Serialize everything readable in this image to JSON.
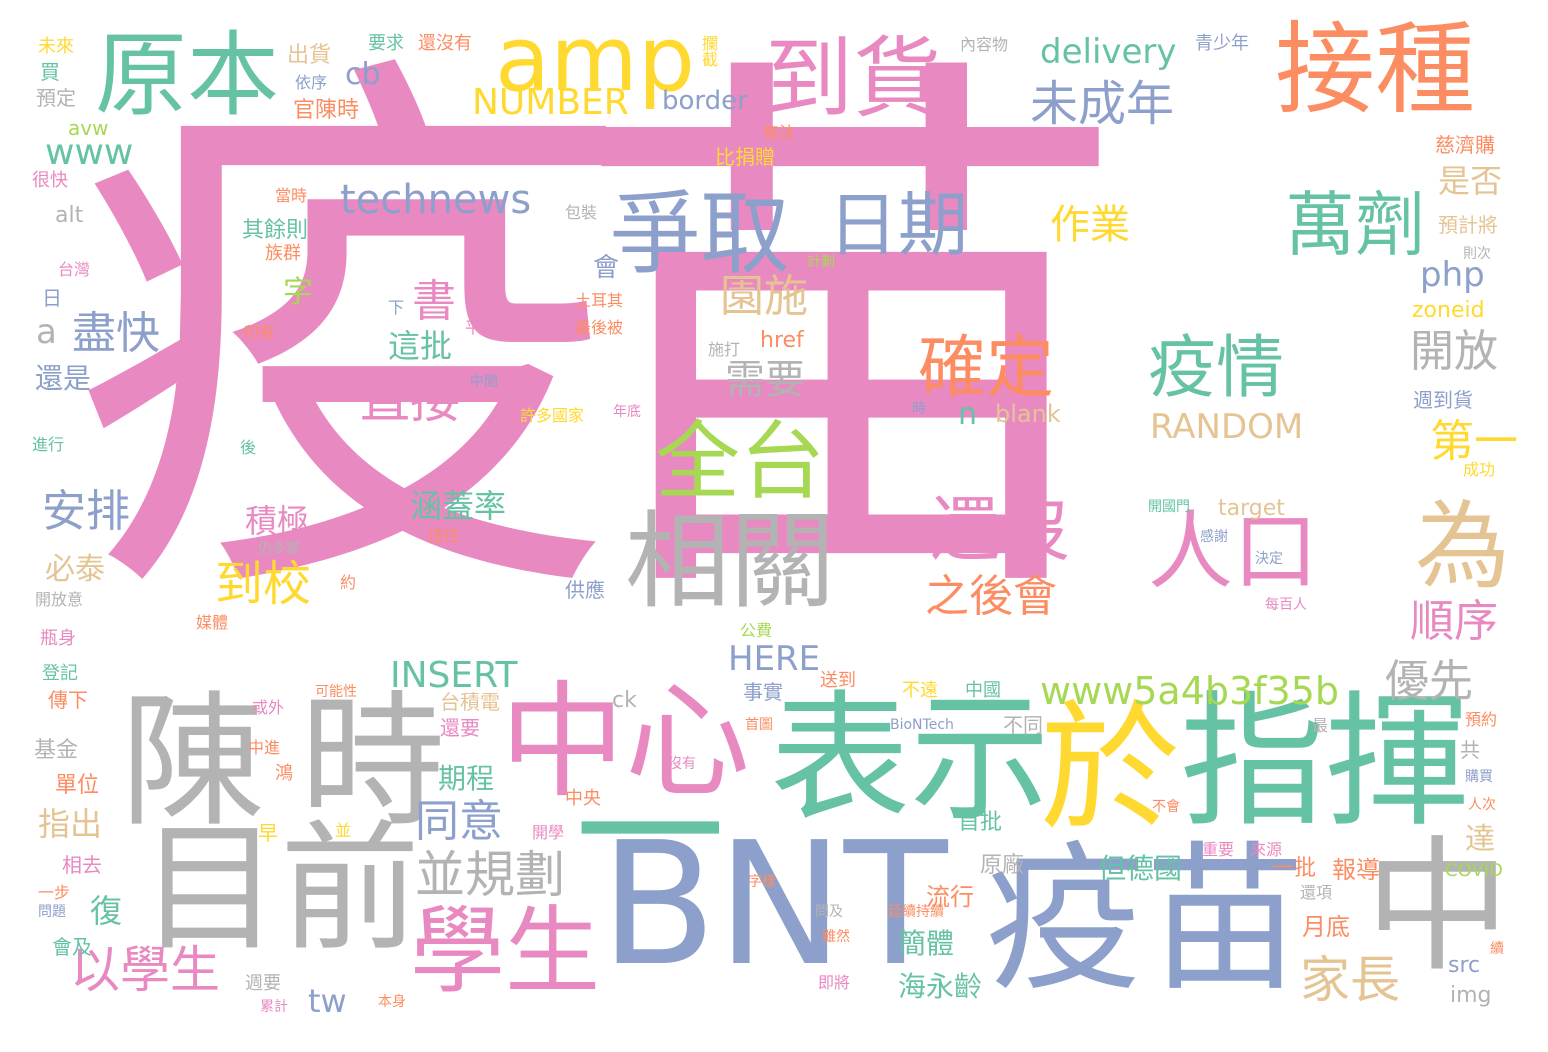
{
  "palette": {
    "pink": "#e889c2",
    "gray": "#b3b3b3",
    "green": "#66c2a5",
    "orange": "#fc8d62",
    "blue": "#8da0cb",
    "lime": "#a6d854",
    "yellow": "#ffd92f",
    "tan": "#e5c494"
  },
  "words": [
    {
      "text": "疫苗",
      "color": "pink"
    },
    {
      "text": "BNT",
      "color": "blue"
    },
    {
      "text": "疫苗",
      "color": "blue"
    },
    {
      "text": "指揮",
      "color": "green"
    },
    {
      "text": "表示",
      "color": "green"
    },
    {
      "text": "目前",
      "color": "gray"
    },
    {
      "text": "陳",
      "color": "gray"
    },
    {
      "text": "時",
      "color": "gray"
    },
    {
      "text": "於",
      "color": "yellow"
    },
    {
      "text": "中心",
      "color": "pink"
    },
    {
      "text": "一",
      "color": "green"
    },
    {
      "text": "中",
      "color": "gray"
    },
    {
      "text": "學生",
      "color": "pink"
    },
    {
      "text": "相關",
      "color": "gray"
    },
    {
      "text": "接種",
      "color": "orange"
    },
    {
      "text": "原本",
      "color": "green"
    },
    {
      "text": "amp",
      "color": "yellow"
    },
    {
      "text": "到貨",
      "color": "pink"
    },
    {
      "text": "爭取",
      "color": "blue"
    },
    {
      "text": "全台",
      "color": "lime"
    },
    {
      "text": "為",
      "color": "tan"
    },
    {
      "text": "萬劑",
      "color": "green"
    },
    {
      "text": "日期",
      "color": "blue"
    },
    {
      "text": "確定",
      "color": "orange"
    },
    {
      "text": "疫情",
      "color": "green"
    },
    {
      "text": "還沒",
      "color": "pink"
    },
    {
      "text": "人口",
      "color": "pink"
    },
    {
      "text": "並規劃",
      "color": "gray"
    },
    {
      "text": "以學生",
      "color": "pink"
    },
    {
      "text": "家長",
      "color": "tan"
    },
    {
      "text": "www5a4b3f35b",
      "color": "lime"
    },
    {
      "text": "優先",
      "color": "gray"
    },
    {
      "text": "未成年",
      "color": "blue"
    },
    {
      "text": "technews",
      "color": "blue"
    },
    {
      "text": "delivery",
      "color": "green"
    },
    {
      "text": "NUMBER",
      "color": "yellow"
    },
    {
      "text": "border",
      "color": "blue"
    },
    {
      "text": "直接",
      "color": "pink"
    },
    {
      "text": "之後會",
      "color": "orange"
    },
    {
      "text": "RANDOM",
      "color": "tan"
    },
    {
      "text": "INSERT",
      "color": "green"
    },
    {
      "text": "HERE",
      "color": "blue"
    },
    {
      "text": "同意",
      "color": "blue"
    },
    {
      "text": "到校",
      "color": "yellow"
    },
    {
      "text": "安排",
      "color": "blue"
    },
    {
      "text": "盡快",
      "color": "blue"
    },
    {
      "text": "園施",
      "color": "tan"
    },
    {
      "text": "需要",
      "color": "gray"
    },
    {
      "text": "開放",
      "color": "gray"
    },
    {
      "text": "順序",
      "color": "pink"
    },
    {
      "text": "第一",
      "color": "yellow"
    },
    {
      "text": "作業",
      "color": "yellow"
    },
    {
      "text": "是否",
      "color": "tan"
    },
    {
      "text": "php",
      "color": "blue"
    },
    {
      "text": "www",
      "color": "green"
    },
    {
      "text": "cb",
      "color": "blue"
    },
    {
      "text": "書",
      "color": "pink"
    },
    {
      "text": "這批",
      "color": "green"
    },
    {
      "text": "涵蓋率",
      "color": "green"
    },
    {
      "text": "積極",
      "color": "pink"
    },
    {
      "text": "tw",
      "color": "blue"
    },
    {
      "text": "復",
      "color": "green"
    },
    {
      "text": "指出",
      "color": "tan"
    },
    {
      "text": "期程",
      "color": "green"
    },
    {
      "text": "簡體",
      "color": "green"
    },
    {
      "text": "海永齡",
      "color": "green"
    },
    {
      "text": "但德國",
      "color": "green"
    },
    {
      "text": "報導",
      "color": "orange"
    },
    {
      "text": "流行",
      "color": "orange"
    },
    {
      "text": "n",
      "color": "green"
    },
    {
      "text": "blank",
      "color": "tan"
    },
    {
      "text": "a",
      "color": "gray"
    },
    {
      "text": "字",
      "color": "lime"
    },
    {
      "text": "必泰",
      "color": "tan"
    },
    {
      "text": "還是",
      "color": "blue"
    },
    {
      "text": "zoneid",
      "color": "yellow"
    },
    {
      "text": "href",
      "color": "orange"
    },
    {
      "text": "target",
      "color": "tan"
    },
    {
      "text": "達",
      "color": "tan"
    },
    {
      "text": "月底",
      "color": "orange"
    },
    {
      "text": "src",
      "color": "blue"
    },
    {
      "text": "img",
      "color": "gray"
    },
    {
      "text": "首批",
      "color": "green"
    },
    {
      "text": "原廠",
      "color": "gray"
    },
    {
      "text": "一批",
      "color": "orange"
    },
    {
      "text": "官陳時",
      "color": "orange"
    },
    {
      "text": "出貨",
      "color": "tan"
    },
    {
      "text": "依序",
      "color": "blue"
    },
    {
      "text": "要求",
      "color": "green"
    },
    {
      "text": "還沒有",
      "color": "orange"
    },
    {
      "text": "青少年",
      "color": "blue"
    },
    {
      "text": "內容物",
      "color": "gray"
    },
    {
      "text": "攔截",
      "color": "yellow"
    },
    {
      "text": "未來",
      "color": "yellow"
    },
    {
      "text": "買",
      "color": "green"
    },
    {
      "text": "預定",
      "color": "gray"
    },
    {
      "text": "avw",
      "color": "lime"
    },
    {
      "text": "很快",
      "color": "pink"
    },
    {
      "text": "alt",
      "color": "gray"
    },
    {
      "text": "台灣",
      "color": "pink"
    },
    {
      "text": "日",
      "color": "blue"
    },
    {
      "text": "比捐贈",
      "color": "yellow"
    },
    {
      "text": "無法",
      "color": "orange"
    },
    {
      "text": "慈濟購",
      "color": "orange"
    },
    {
      "text": "預計將",
      "color": "tan"
    },
    {
      "text": "週到貨",
      "color": "blue"
    },
    {
      "text": "成功",
      "color": "yellow"
    },
    {
      "text": "其餘則",
      "color": "green"
    },
    {
      "text": "當時",
      "color": "orange"
    },
    {
      "text": "族群",
      "color": "orange"
    },
    {
      "text": "包裝",
      "color": "gray"
    },
    {
      "text": "會",
      "color": "blue"
    },
    {
      "text": "土耳其",
      "color": "orange"
    },
    {
      "text": "最後被",
      "color": "orange"
    },
    {
      "text": "平台",
      "color": "pink"
    },
    {
      "text": "中間",
      "color": "blue"
    },
    {
      "text": "許多國家",
      "color": "yellow"
    },
    {
      "text": "年底",
      "color": "pink"
    },
    {
      "text": "印有",
      "color": "orange"
    },
    {
      "text": "下",
      "color": "blue"
    },
    {
      "text": "送往",
      "color": "orange"
    },
    {
      "text": "仍多變",
      "color": "gray"
    },
    {
      "text": "約",
      "color": "orange"
    },
    {
      "text": "供應",
      "color": "blue"
    },
    {
      "text": "開放意",
      "color": "gray"
    },
    {
      "text": "瓶身",
      "color": "pink"
    },
    {
      "text": "登記",
      "color": "green"
    },
    {
      "text": "傳下",
      "color": "orange"
    },
    {
      "text": "媒體",
      "color": "orange"
    },
    {
      "text": "公費",
      "color": "lime"
    },
    {
      "text": "送到",
      "color": "orange"
    },
    {
      "text": "不遠",
      "color": "yellow"
    },
    {
      "text": "中國",
      "color": "green"
    },
    {
      "text": "事實",
      "color": "blue"
    },
    {
      "text": "BioNTech",
      "color": "blue"
    },
    {
      "text": "不同",
      "color": "gray"
    },
    {
      "text": "ck",
      "color": "gray"
    },
    {
      "text": "台積電",
      "color": "tan"
    },
    {
      "text": "還要",
      "color": "pink"
    },
    {
      "text": "基金",
      "color": "gray"
    },
    {
      "text": "單位",
      "color": "orange"
    },
    {
      "text": "或外",
      "color": "pink"
    },
    {
      "text": "可能性",
      "color": "orange"
    },
    {
      "text": "中進",
      "color": "orange"
    },
    {
      "text": "鴻",
      "color": "orange"
    },
    {
      "text": "首圖",
      "color": "orange"
    },
    {
      "text": "沒有",
      "color": "pink"
    },
    {
      "text": "中央",
      "color": "orange"
    },
    {
      "text": "開學",
      "color": "pink"
    },
    {
      "text": "早",
      "color": "yellow"
    },
    {
      "text": "相去",
      "color": "pink"
    },
    {
      "text": "一步",
      "color": "orange"
    },
    {
      "text": "問題",
      "color": "blue"
    },
    {
      "text": "會及",
      "color": "green"
    },
    {
      "text": "週要",
      "color": "gray"
    },
    {
      "text": "累計",
      "color": "pink"
    },
    {
      "text": "本身",
      "color": "orange"
    },
    {
      "text": "即將",
      "color": "pink"
    },
    {
      "text": "問及",
      "color": "gray"
    },
    {
      "text": "雖然",
      "color": "orange"
    },
    {
      "text": "字樣",
      "color": "orange"
    },
    {
      "text": "延續持續",
      "color": "orange"
    },
    {
      "text": "重要",
      "color": "pink"
    },
    {
      "text": "來源",
      "color": "pink"
    },
    {
      "text": "COVID",
      "color": "lime"
    },
    {
      "text": "還項",
      "color": "gray"
    },
    {
      "text": "預約",
      "color": "orange"
    },
    {
      "text": "共",
      "color": "gray"
    },
    {
      "text": "購買",
      "color": "blue"
    },
    {
      "text": "人次",
      "color": "orange"
    },
    {
      "text": "開國門",
      "color": "green"
    },
    {
      "text": "感謝",
      "color": "blue"
    },
    {
      "text": "決定",
      "color": "blue"
    },
    {
      "text": "每百人",
      "color": "pink"
    },
    {
      "text": "並",
      "color": "yellow"
    },
    {
      "text": "後",
      "color": "green"
    },
    {
      "text": "進行",
      "color": "green"
    },
    {
      "text": "計劃",
      "color": "lime"
    },
    {
      "text": "施打",
      "color": "gray"
    },
    {
      "text": "時",
      "color": "blue"
    },
    {
      "text": "不會",
      "color": "orange"
    },
    {
      "text": "最",
      "color": "gray"
    },
    {
      "text": "則次",
      "color": "gray"
    },
    {
      "text": "續",
      "color": "orange"
    }
  ]
}
